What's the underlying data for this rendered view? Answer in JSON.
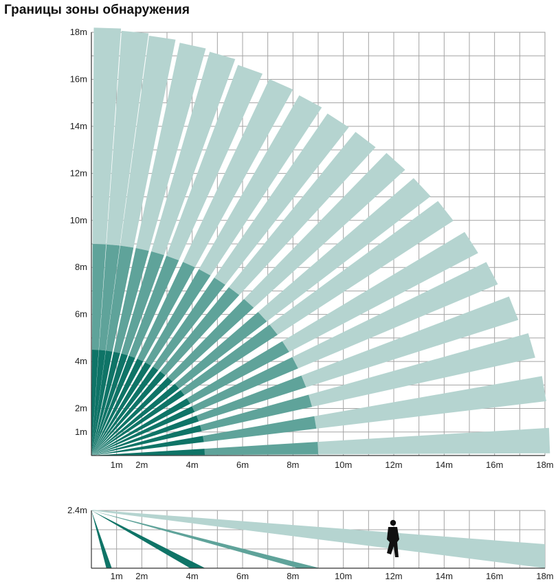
{
  "title": "Границы зоны обнаружения",
  "top_view": {
    "x_ticks": [
      {
        "value": 1,
        "label": "1m"
      },
      {
        "value": 2,
        "label": "2m"
      },
      {
        "value": 4,
        "label": "4m"
      },
      {
        "value": 6,
        "label": "6m"
      },
      {
        "value": 8,
        "label": "8m"
      },
      {
        "value": 10,
        "label": "10m"
      },
      {
        "value": 12,
        "label": "12m"
      },
      {
        "value": 14,
        "label": "14m"
      },
      {
        "value": 16,
        "label": "16m"
      },
      {
        "value": 18,
        "label": "18m"
      }
    ],
    "y_ticks": [
      {
        "value": 1,
        "label": "1m"
      },
      {
        "value": 2,
        "label": "2m"
      },
      {
        "value": 4,
        "label": "4m"
      },
      {
        "value": 6,
        "label": "6m"
      },
      {
        "value": 8,
        "label": "8m"
      },
      {
        "value": 10,
        "label": "10m"
      },
      {
        "value": 12,
        "label": "12m"
      },
      {
        "value": 14,
        "label": "14m"
      },
      {
        "value": 16,
        "label": "16m"
      },
      {
        "value": 18,
        "label": "18m"
      }
    ],
    "range_m": 18,
    "beam_angles_deg": [
      2,
      9,
      15,
      20.5,
      26,
      31,
      36.5,
      41,
      46,
      51,
      55.5,
      60,
      64.5,
      69,
      73,
      77,
      81,
      84.5,
      88
    ],
    "beam_lengths_m": [
      18.2,
      18.2,
      18.1,
      17.9,
      17.7,
      17.6,
      17.5,
      17.4,
      17.4,
      17.3,
      17.3,
      17.4,
      17.5,
      17.6,
      17.8,
      17.9,
      18.0,
      18.1,
      18.2
    ],
    "zones": [
      {
        "name": "far",
        "max_m": 18,
        "color": "#b5d4d0"
      },
      {
        "name": "mid",
        "max_m": 9,
        "color": "#5fa39a"
      },
      {
        "name": "near",
        "max_m": 4.5,
        "color": "#0f7467"
      }
    ]
  },
  "side_view": {
    "height_label": "2.4m",
    "height_m": 2.4,
    "x_ticks": [
      {
        "value": 1,
        "label": "1m"
      },
      {
        "value": 2,
        "label": "2m"
      },
      {
        "value": 4,
        "label": "4m"
      },
      {
        "value": 6,
        "label": "6m"
      },
      {
        "value": 8,
        "label": "8m"
      },
      {
        "value": 10,
        "label": "10m"
      },
      {
        "value": 12,
        "label": "12m"
      },
      {
        "value": 14,
        "label": "14m"
      },
      {
        "value": 16,
        "label": "16m"
      },
      {
        "value": 18,
        "label": "18m"
      }
    ],
    "beams": [
      {
        "name": "far",
        "end_m": 18,
        "color": "#b5d4d0"
      },
      {
        "name": "mid",
        "end_m": 8.8,
        "color": "#5fa39a"
      },
      {
        "name": "near-long",
        "end_m": 4.3,
        "color": "#0f7467"
      },
      {
        "name": "near-short",
        "end_m": 0.7,
        "color": "#0f7467"
      }
    ],
    "person_at_m": 12
  }
}
